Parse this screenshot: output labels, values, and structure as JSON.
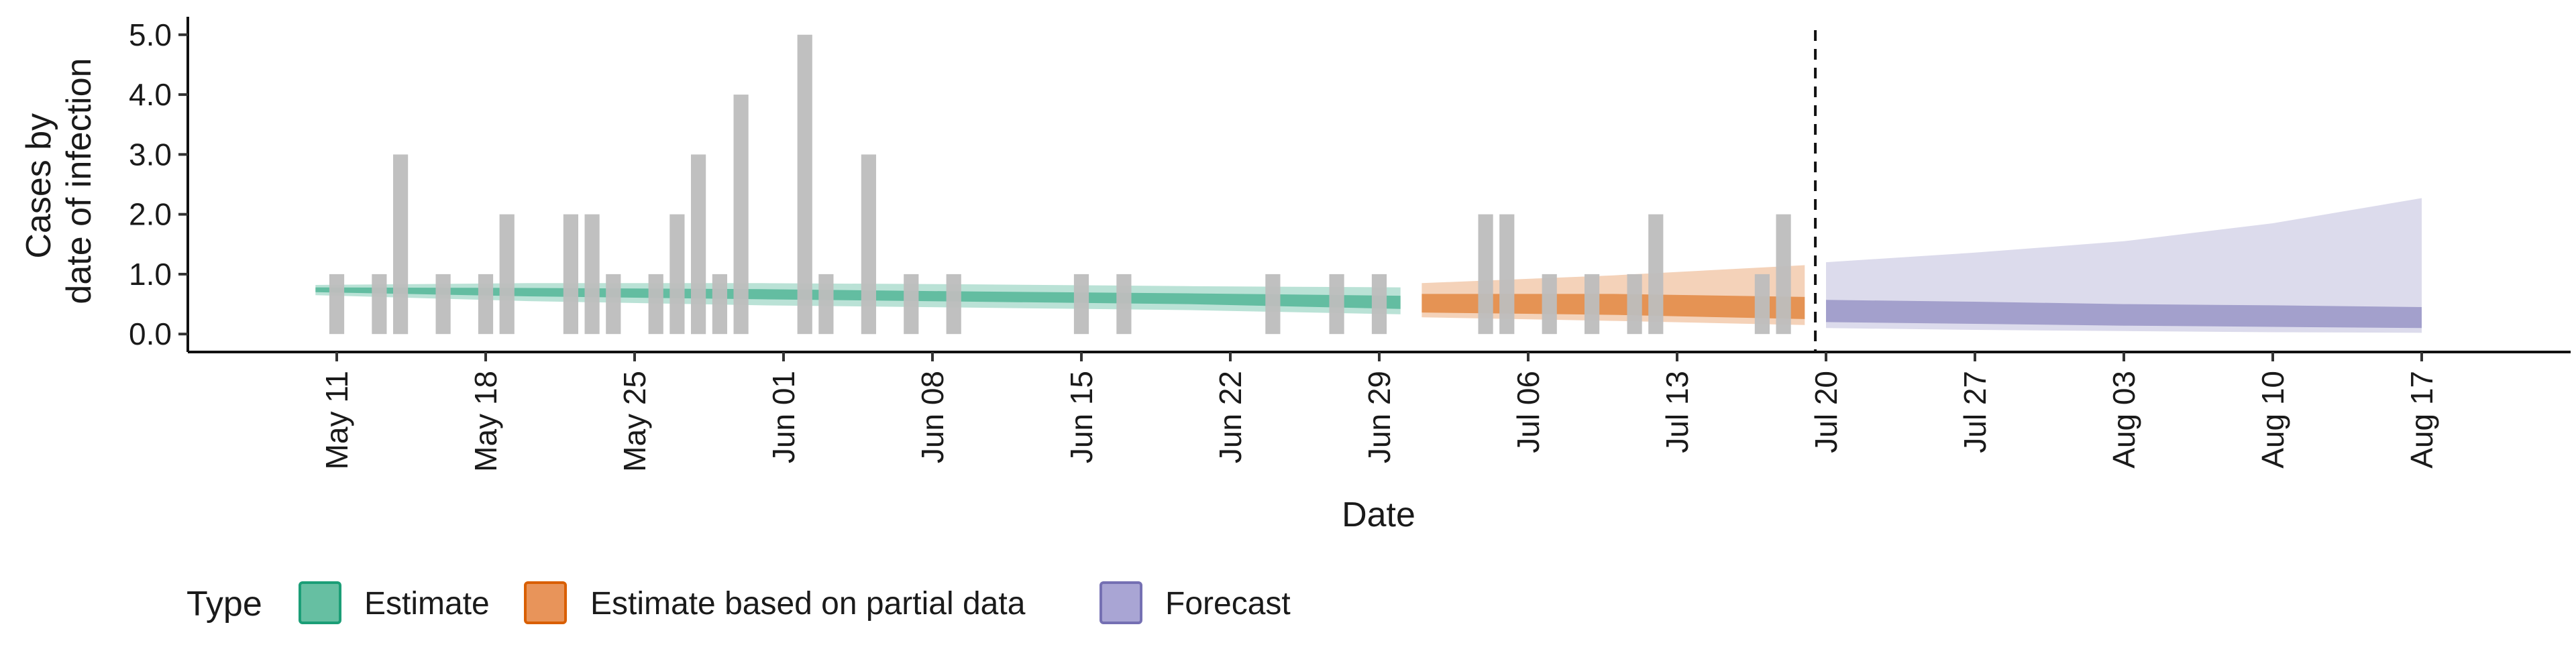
{
  "chart_data": {
    "type": "bar",
    "title": "",
    "xlabel": "Date",
    "ylabel_lines": [
      "Cases by",
      "date of infection"
    ],
    "ylim": [
      -0.3,
      5.3
    ],
    "yticks": [
      0.0,
      1.0,
      2.0,
      3.0,
      4.0,
      5.0
    ],
    "ytick_labels": [
      "0.0",
      "1.0",
      "2.0",
      "3.0",
      "4.0",
      "5.0"
    ],
    "xlim": [
      "2020-05-04",
      "2020-08-24"
    ],
    "xticks": [
      "2020-05-11",
      "2020-05-18",
      "2020-05-25",
      "2020-06-01",
      "2020-06-08",
      "2020-06-15",
      "2020-06-22",
      "2020-06-29",
      "2020-07-06",
      "2020-07-13",
      "2020-07-20",
      "2020-07-27",
      "2020-08-03",
      "2020-08-10",
      "2020-08-17"
    ],
    "xtick_labels": [
      "May 11",
      "May 18",
      "May 25",
      "Jun 01",
      "Jun 08",
      "Jun 15",
      "Jun 22",
      "Jun 29",
      "Jul 06",
      "Jul 13",
      "Jul 20",
      "Jul 27",
      "Aug 03",
      "Aug 10",
      "Aug 17"
    ],
    "forecast_start_date": "2020-07-19",
    "bar_color": "#bdbdbd",
    "observed_cases": [
      {
        "date": "2020-05-11",
        "value": 1
      },
      {
        "date": "2020-05-13",
        "value": 1
      },
      {
        "date": "2020-05-14",
        "value": 3
      },
      {
        "date": "2020-05-16",
        "value": 1
      },
      {
        "date": "2020-05-18",
        "value": 1
      },
      {
        "date": "2020-05-19",
        "value": 2
      },
      {
        "date": "2020-05-22",
        "value": 2
      },
      {
        "date": "2020-05-23",
        "value": 2
      },
      {
        "date": "2020-05-24",
        "value": 1
      },
      {
        "date": "2020-05-26",
        "value": 1
      },
      {
        "date": "2020-05-27",
        "value": 2
      },
      {
        "date": "2020-05-28",
        "value": 3
      },
      {
        "date": "2020-05-29",
        "value": 1
      },
      {
        "date": "2020-05-30",
        "value": 4
      },
      {
        "date": "2020-06-02",
        "value": 5
      },
      {
        "date": "2020-06-03",
        "value": 1
      },
      {
        "date": "2020-06-05",
        "value": 3
      },
      {
        "date": "2020-06-07",
        "value": 1
      },
      {
        "date": "2020-06-09",
        "value": 1
      },
      {
        "date": "2020-06-15",
        "value": 1
      },
      {
        "date": "2020-06-17",
        "value": 1
      },
      {
        "date": "2020-06-24",
        "value": 1
      },
      {
        "date": "2020-06-27",
        "value": 1
      },
      {
        "date": "2020-06-29",
        "value": 1
      },
      {
        "date": "2020-07-04",
        "value": 2
      },
      {
        "date": "2020-07-05",
        "value": 2
      },
      {
        "date": "2020-07-07",
        "value": 1
      },
      {
        "date": "2020-07-09",
        "value": 1
      },
      {
        "date": "2020-07-11",
        "value": 1
      },
      {
        "date": "2020-07-12",
        "value": 2
      },
      {
        "date": "2020-07-17",
        "value": 1
      },
      {
        "date": "2020-07-18",
        "value": 2
      }
    ],
    "series": [
      {
        "name": "Estimate",
        "color": "#1b9e77",
        "outer_opacity": 0.3,
        "inner_opacity": 0.55,
        "points": [
          {
            "date": "2020-05-10",
            "outer": [
              0.65,
              0.82
            ],
            "inner": [
              0.7,
              0.78
            ]
          },
          {
            "date": "2020-05-20",
            "outer": [
              0.55,
              0.85
            ],
            "inner": [
              0.63,
              0.77
            ]
          },
          {
            "date": "2020-05-31",
            "outer": [
              0.48,
              0.85
            ],
            "inner": [
              0.58,
              0.75
            ]
          },
          {
            "date": "2020-06-10",
            "outer": [
              0.44,
              0.83
            ],
            "inner": [
              0.54,
              0.71
            ]
          },
          {
            "date": "2020-06-20",
            "outer": [
              0.4,
              0.8
            ],
            "inner": [
              0.5,
              0.68
            ]
          },
          {
            "date": "2020-06-30",
            "outer": [
              0.33,
              0.78
            ],
            "inner": [
              0.42,
              0.64
            ]
          }
        ]
      },
      {
        "name": "Estimate based on partial data",
        "color": "#d95f02",
        "outer_opacity": 0.28,
        "inner_opacity": 0.55,
        "points": [
          {
            "date": "2020-07-01",
            "outer": [
              0.28,
              0.85
            ],
            "inner": [
              0.36,
              0.67
            ]
          },
          {
            "date": "2020-07-10",
            "outer": [
              0.22,
              0.98
            ],
            "inner": [
              0.32,
              0.67
            ]
          },
          {
            "date": "2020-07-19",
            "outer": [
              0.15,
              1.15
            ],
            "inner": [
              0.25,
              0.62
            ]
          }
        ]
      },
      {
        "name": "Forecast",
        "color": "#7570b3",
        "outer_opacity": 0.25,
        "inner_opacity": 0.55,
        "points": [
          {
            "date": "2020-07-20",
            "outer": [
              0.1,
              1.2
            ],
            "inner": [
              0.2,
              0.57
            ]
          },
          {
            "date": "2020-07-27",
            "outer": [
              0.07,
              1.36
            ],
            "inner": [
              0.17,
              0.54
            ]
          },
          {
            "date": "2020-08-03",
            "outer": [
              0.05,
              1.55
            ],
            "inner": [
              0.14,
              0.5
            ]
          },
          {
            "date": "2020-08-10",
            "outer": [
              0.03,
              1.85
            ],
            "inner": [
              0.12,
              0.48
            ]
          },
          {
            "date": "2020-08-17",
            "outer": [
              0.02,
              2.27
            ],
            "inner": [
              0.1,
              0.45
            ]
          }
        ]
      }
    ]
  },
  "legend": {
    "title": "Type",
    "items": [
      {
        "label": "Estimate",
        "fill": "#66bfa2",
        "border": "#1b9e77"
      },
      {
        "label": "Estimate based on partial data",
        "fill": "#e8945a",
        "border": "#d95f02"
      },
      {
        "label": "Forecast",
        "fill": "#a9a5d4",
        "border": "#7570b3"
      }
    ]
  }
}
